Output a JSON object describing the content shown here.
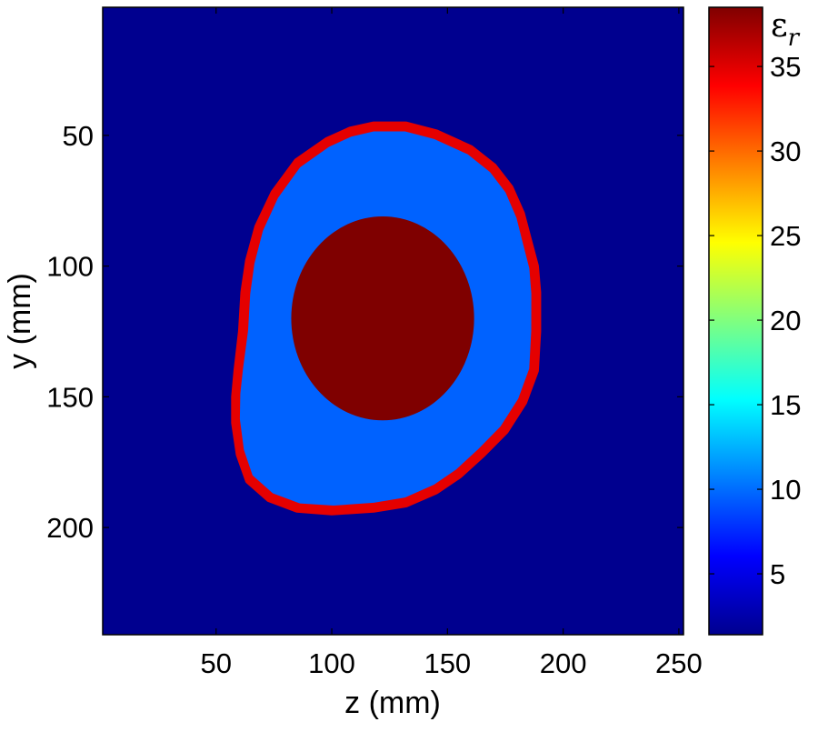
{
  "chart_data": {
    "type": "heatmap",
    "colormap": "jet",
    "xlabel": "z (mm)",
    "ylabel": "y (mm)",
    "xlim": [
      1,
      252
    ],
    "ylim": [
      241,
      1
    ],
    "x_ticks": [
      50,
      100,
      150,
      200,
      250
    ],
    "y_ticks": [
      50,
      100,
      150,
      200
    ],
    "colorbar": {
      "label_symbol": "ε",
      "label_subscript": "r",
      "clim": [
        1.4,
        38.5
      ],
      "ticks": [
        5,
        10,
        15,
        20,
        25,
        30,
        35
      ]
    },
    "regions": [
      {
        "label": "background",
        "value": 1.4,
        "color": "#00008f"
      },
      {
        "label": "outer ring",
        "value": 34.0,
        "color": "#e50000"
      },
      {
        "label": "fill",
        "value": 10.5,
        "color": "#0062ff"
      },
      {
        "label": "core",
        "value": 38.5,
        "color": "#7f0000"
      }
    ],
    "outer_boundary_mm": [
      [
        118,
        46
      ],
      [
        132,
        46
      ],
      [
        145,
        49
      ],
      [
        160,
        55
      ],
      [
        170,
        62
      ],
      [
        177,
        70
      ],
      [
        182,
        80
      ],
      [
        185,
        90
      ],
      [
        188,
        100
      ],
      [
        189,
        110
      ],
      [
        189,
        125
      ],
      [
        188,
        140
      ],
      [
        183,
        152
      ],
      [
        175,
        163
      ],
      [
        165,
        172
      ],
      [
        155,
        180
      ],
      [
        145,
        186
      ],
      [
        132,
        191
      ],
      [
        118,
        193
      ],
      [
        100,
        194
      ],
      [
        85,
        193
      ],
      [
        73,
        189
      ],
      [
        64,
        182
      ],
      [
        60,
        172
      ],
      [
        58,
        160
      ],
      [
        58,
        150
      ],
      [
        59,
        140
      ],
      [
        61,
        125
      ],
      [
        62,
        110
      ],
      [
        64,
        98
      ],
      [
        68,
        85
      ],
      [
        75,
        72
      ],
      [
        85,
        60
      ],
      [
        98,
        52
      ],
      [
        108,
        48
      ]
    ],
    "ring_width_mm": 3,
    "core_ellipse_mm": {
      "cz": 122,
      "cy": 120,
      "rz": 39.5,
      "ry": 39
    }
  }
}
